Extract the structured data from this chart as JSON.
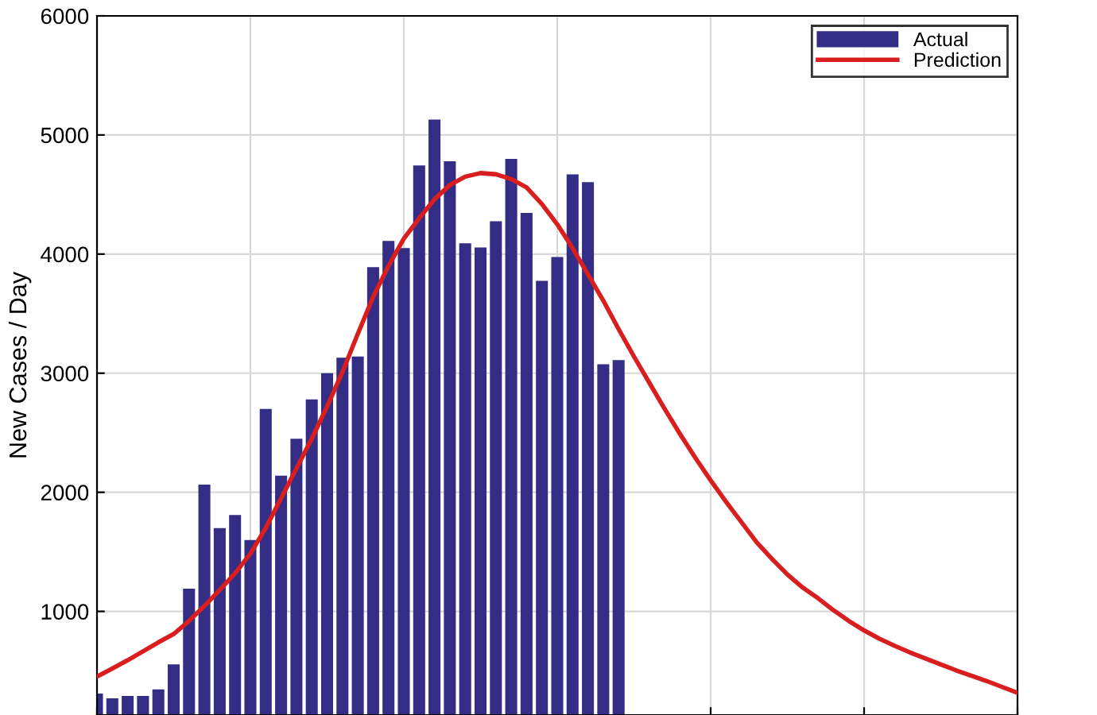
{
  "chart_data": {
    "type": "bar",
    "ylabel": "New Cases / Day",
    "categories": [
      null,
      null,
      null,
      null,
      null,
      null,
      null,
      null,
      null,
      null,
      null,
      null,
      null,
      null,
      null,
      null,
      null,
      null,
      null,
      null,
      null,
      null,
      null,
      null,
      null,
      null,
      null,
      null,
      null,
      null,
      null,
      null,
      null,
      null,
      null,
      null,
      null,
      null,
      null,
      null,
      null,
      null,
      null,
      null,
      null,
      null,
      null,
      null,
      null,
      null,
      null,
      null,
      null,
      null,
      null,
      null,
      null,
      null,
      null,
      null,
      null
    ],
    "series": [
      {
        "name": "Actual",
        "color": "#332d86",
        "values": [
          310,
          270,
          290,
          290,
          345,
          555,
          1190,
          2065,
          1700,
          1810,
          1600,
          2700,
          2140,
          2450,
          2780,
          3000,
          3130,
          3140,
          3890,
          4110,
          4050,
          4745,
          5130,
          4780,
          4090,
          4055,
          4275,
          4800,
          4345,
          3775,
          3975,
          4670,
          4605,
          3075,
          3110,
          null,
          null,
          null,
          null,
          null,
          null,
          null,
          null,
          null,
          null,
          null,
          null,
          null,
          null,
          null,
          null,
          null,
          null,
          null,
          null,
          null,
          null,
          null,
          null,
          null,
          null
        ]
      },
      {
        "name": "Prediction",
        "type": "line",
        "color": "#d81e1e",
        "values": [
          453,
          520,
          590,
          665,
          740,
          810,
          920,
          1045,
          1180,
          1320,
          1485,
          1700,
          1950,
          2200,
          2450,
          2720,
          3010,
          3330,
          3640,
          3900,
          4130,
          4300,
          4460,
          4580,
          4650,
          4680,
          4670,
          4630,
          4560,
          4420,
          4250,
          4050,
          3830,
          3610,
          3370,
          3140,
          2920,
          2700,
          2490,
          2290,
          2100,
          1920,
          1750,
          1580,
          1440,
          1310,
          1200,
          1110,
          1010,
          920,
          840,
          770,
          710,
          655,
          605,
          555,
          505,
          460,
          415,
          365,
          316
        ]
      }
    ],
    "ylim": [
      130,
      6000
    ],
    "yticks": [
      1000,
      2000,
      3000,
      4000,
      5000,
      6000
    ],
    "grid": true,
    "legend": "top right"
  }
}
